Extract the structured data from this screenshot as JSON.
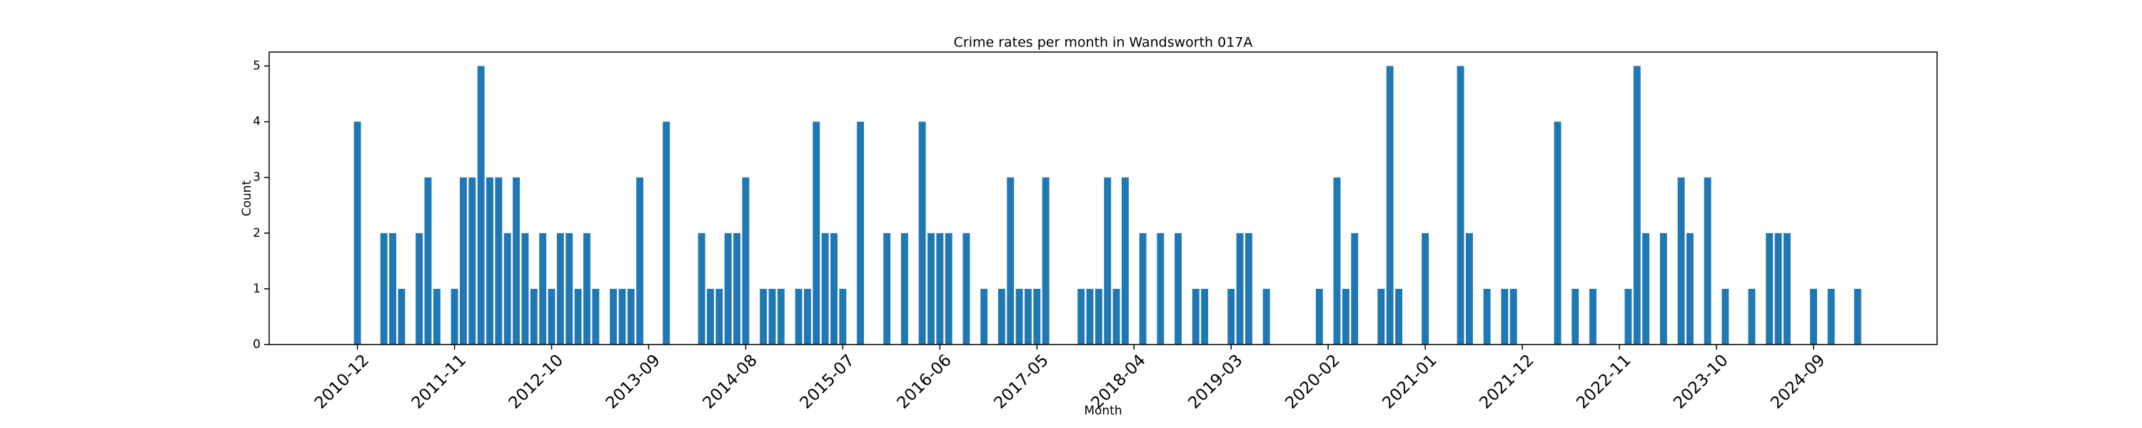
{
  "chart_data": {
    "type": "bar",
    "title": "Crime rates per month in Wandsworth 017A",
    "x_label": "Month",
    "y_label": "Count",
    "color": "#1f77b4",
    "x": [
      "2010-12",
      "2011-03",
      "2011-04",
      "2011-05",
      "2011-07",
      "2011-08",
      "2011-09",
      "2011-11",
      "2011-12",
      "2012-01",
      "2012-02",
      "2012-03",
      "2012-04",
      "2012-05",
      "2012-06",
      "2012-07",
      "2012-08",
      "2012-09",
      "2012-10",
      "2012-11",
      "2012-12",
      "2013-01",
      "2013-02",
      "2013-03",
      "2013-05",
      "2013-06",
      "2013-07",
      "2013-08",
      "2013-11",
      "2014-03",
      "2014-04",
      "2014-05",
      "2014-06",
      "2014-07",
      "2014-08",
      "2014-10",
      "2014-11",
      "2014-12",
      "2015-02",
      "2015-03",
      "2015-04",
      "2015-05",
      "2015-06",
      "2015-07",
      "2015-09",
      "2015-12",
      "2016-02",
      "2016-04",
      "2016-05",
      "2016-06",
      "2016-07",
      "2016-09",
      "2016-11",
      "2017-01",
      "2017-02",
      "2017-03",
      "2017-04",
      "2017-05",
      "2017-06",
      "2017-10",
      "2017-11",
      "2017-12",
      "2018-01",
      "2018-02",
      "2018-03",
      "2018-05",
      "2018-07",
      "2018-09",
      "2018-11",
      "2018-12",
      "2019-03",
      "2019-04",
      "2019-05",
      "2019-07",
      "2020-01",
      "2020-03",
      "2020-04",
      "2020-05",
      "2020-08",
      "2020-09",
      "2020-10",
      "2021-01",
      "2021-05",
      "2021-06",
      "2021-08",
      "2021-10",
      "2021-11",
      "2022-04",
      "2022-06",
      "2022-08",
      "2022-12",
      "2023-01",
      "2023-02",
      "2023-04",
      "2023-06",
      "2023-07",
      "2023-09",
      "2023-11",
      "2024-02",
      "2024-04",
      "2024-05",
      "2024-06",
      "2024-09",
      "2024-11",
      "2025-02"
    ],
    "values": [
      4,
      2,
      2,
      1,
      2,
      3,
      1,
      1,
      3,
      3,
      5,
      3,
      3,
      2,
      3,
      2,
      1,
      2,
      1,
      2,
      2,
      1,
      2,
      1,
      1,
      1,
      1,
      3,
      4,
      2,
      1,
      1,
      2,
      2,
      3,
      1,
      1,
      1,
      1,
      1,
      4,
      2,
      2,
      1,
      4,
      2,
      2,
      4,
      2,
      2,
      2,
      2,
      1,
      1,
      3,
      1,
      1,
      1,
      3,
      1,
      1,
      1,
      3,
      1,
      3,
      2,
      2,
      2,
      1,
      1,
      1,
      2,
      2,
      1,
      1,
      3,
      1,
      2,
      1,
      5,
      1,
      2,
      5,
      2,
      1,
      1,
      1,
      4,
      1,
      1,
      1,
      5,
      2,
      2,
      3,
      2,
      3,
      1,
      1,
      2,
      2,
      2,
      1,
      1,
      1
    ],
    "xlim": [
      "2010-02",
      "2025-11"
    ],
    "xticks": [
      "2010-12",
      "2011-11",
      "2012-10",
      "2013-09",
      "2014-08",
      "2015-07",
      "2016-06",
      "2017-05",
      "2018-04",
      "2019-03",
      "2020-02",
      "2021-01",
      "2021-12",
      "2022-11",
      "2023-10",
      "2024-09"
    ],
    "ylim": [
      0,
      5.25
    ],
    "yticks": [
      0,
      1,
      2,
      3,
      4,
      5
    ]
  }
}
